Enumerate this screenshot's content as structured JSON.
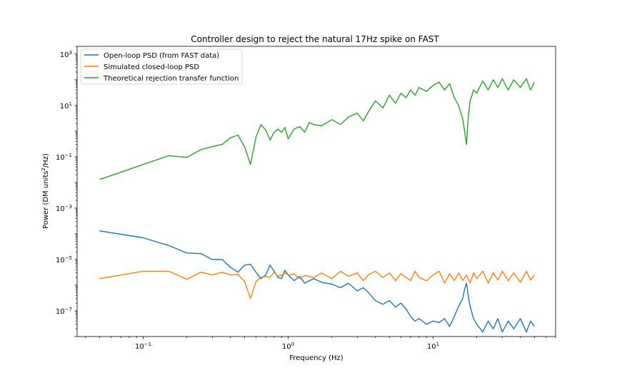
{
  "chart_data": {
    "type": "line",
    "title": "Controller design to reject the natural 17Hz spike on FAST",
    "xlabel": "Frequency (Hz)",
    "ylabel_prefix": "Power (DM units",
    "ylabel_sup": "2",
    "ylabel_suffix": "/Hz)",
    "xscale": "log",
    "yscale": "log",
    "xlim": [
      0.035,
      70
    ],
    "ylim": [
      1e-08,
      2000
    ],
    "x_ticks": [
      {
        "value": 0.1,
        "base": "10",
        "exp": "−1"
      },
      {
        "value": 1,
        "base": "10",
        "exp": "0"
      },
      {
        "value": 10,
        "base": "10",
        "exp": "1"
      }
    ],
    "y_ticks": [
      {
        "value": 1e-07,
        "base": "10",
        "exp": "−7"
      },
      {
        "value": 1e-05,
        "base": "10",
        "exp": "−5"
      },
      {
        "value": 0.001,
        "base": "10",
        "exp": "−3"
      },
      {
        "value": 0.1,
        "base": "10",
        "exp": "−1"
      },
      {
        "value": 10,
        "base": "10",
        "exp": "1"
      },
      {
        "value": 1000,
        "base": "10",
        "exp": "3"
      }
    ],
    "grid": false,
    "legend_position": "top-left",
    "series": [
      {
        "name": "Open-loop PSD (from FAST data)",
        "color": "#1f77b4",
        "points": [
          [
            0.05,
            0.00013
          ],
          [
            0.1,
            7e-05
          ],
          [
            0.15,
            3.5e-05
          ],
          [
            0.2,
            1.8e-05
          ],
          [
            0.25,
            1.7e-05
          ],
          [
            0.3,
            1e-05
          ],
          [
            0.35,
            1e-05
          ],
          [
            0.4,
            5e-06
          ],
          [
            0.45,
            3.2e-06
          ],
          [
            0.5,
            6e-06
          ],
          [
            0.55,
            6.5e-06
          ],
          [
            0.6,
            3.2e-06
          ],
          [
            0.65,
            1.8e-06
          ],
          [
            0.7,
            2.5e-06
          ],
          [
            0.75,
            6e-06
          ],
          [
            0.8,
            3.5e-06
          ],
          [
            0.85,
            2e-06
          ],
          [
            0.9,
            1.8e-06
          ],
          [
            0.95,
            3.8e-06
          ],
          [
            1.0,
            2.5e-06
          ],
          [
            1.1,
            1.5e-06
          ],
          [
            1.2,
            2.2e-06
          ],
          [
            1.3,
            1.2e-06
          ],
          [
            1.5,
            1.8e-06
          ],
          [
            1.7,
            1.3e-06
          ],
          [
            2.0,
            1.1e-06
          ],
          [
            2.3,
            8e-07
          ],
          [
            2.6,
            1.2e-06
          ],
          [
            3.0,
            6e-07
          ],
          [
            3.3,
            8e-07
          ],
          [
            3.6,
            5e-07
          ],
          [
            4.0,
            2.5e-07
          ],
          [
            4.5,
            1.8e-07
          ],
          [
            5.0,
            2.5e-07
          ],
          [
            5.5,
            1.4e-07
          ],
          [
            6.0,
            2e-07
          ],
          [
            6.5,
            1.2e-07
          ],
          [
            7.0,
            6e-08
          ],
          [
            7.5,
            4e-08
          ],
          [
            8.0,
            5e-08
          ],
          [
            9.0,
            3e-08
          ],
          [
            10.0,
            4e-08
          ],
          [
            11.0,
            3.5e-08
          ],
          [
            12.0,
            5e-08
          ],
          [
            13.0,
            2.5e-08
          ],
          [
            14.0,
            6e-08
          ],
          [
            15.0,
            1.5e-07
          ],
          [
            16.0,
            3e-07
          ],
          [
            16.5,
            7e-07
          ],
          [
            17.0,
            1.2e-06
          ],
          [
            17.3,
            6e-07
          ],
          [
            17.6,
            3e-07
          ],
          [
            18.0,
            1.5e-07
          ],
          [
            19.0,
            5e-08
          ],
          [
            20.0,
            3e-08
          ],
          [
            22.0,
            1.5e-08
          ],
          [
            24.0,
            4e-08
          ],
          [
            26.0,
            2e-08
          ],
          [
            28.0,
            5e-08
          ],
          [
            30.0,
            1.5e-08
          ],
          [
            33.0,
            4e-08
          ],
          [
            36.0,
            2e-08
          ],
          [
            40.0,
            5e-08
          ],
          [
            44.0,
            1.5e-08
          ],
          [
            47.0,
            4e-08
          ],
          [
            50.0,
            2.5e-08
          ]
        ]
      },
      {
        "name": "Simulated closed-loop PSD",
        "color": "#ff7f0e",
        "points": [
          [
            0.05,
            1.8e-06
          ],
          [
            0.1,
            3.5e-06
          ],
          [
            0.15,
            3.5e-06
          ],
          [
            0.2,
            1.7e-06
          ],
          [
            0.25,
            3.2e-06
          ],
          [
            0.3,
            2.5e-06
          ],
          [
            0.35,
            3.2e-06
          ],
          [
            0.4,
            2.5e-06
          ],
          [
            0.45,
            2.6e-06
          ],
          [
            0.5,
            1.4e-06
          ],
          [
            0.55,
            3e-07
          ],
          [
            0.6,
            1.4e-06
          ],
          [
            0.65,
            2e-06
          ],
          [
            0.7,
            2.2e-06
          ],
          [
            0.75,
            2e-06
          ],
          [
            0.8,
            3.2e-06
          ],
          [
            0.85,
            2.2e-06
          ],
          [
            0.9,
            2.5e-06
          ],
          [
            0.95,
            3e-06
          ],
          [
            1.0,
            2.5e-06
          ],
          [
            1.1,
            2.7e-06
          ],
          [
            1.2,
            1.8e-06
          ],
          [
            1.3,
            2.4e-06
          ],
          [
            1.5,
            2e-06
          ],
          [
            1.7,
            3e-06
          ],
          [
            2.0,
            1.8e-06
          ],
          [
            2.3,
            3.5e-06
          ],
          [
            2.6,
            2.2e-06
          ],
          [
            3.0,
            3e-06
          ],
          [
            3.3,
            1.5e-06
          ],
          [
            3.6,
            2.6e-06
          ],
          [
            4.0,
            3.5e-06
          ],
          [
            4.5,
            2e-06
          ],
          [
            5.0,
            3e-06
          ],
          [
            5.5,
            1.5e-06
          ],
          [
            6.0,
            2.8e-06
          ],
          [
            6.5,
            2e-06
          ],
          [
            7.0,
            1.5e-06
          ],
          [
            7.5,
            3.5e-06
          ],
          [
            8.0,
            2e-06
          ],
          [
            9.0,
            1.5e-06
          ],
          [
            10.0,
            2.5e-06
          ],
          [
            11.0,
            3.5e-06
          ],
          [
            12.0,
            1.2e-06
          ],
          [
            13.0,
            2.8e-06
          ],
          [
            14.0,
            1.5e-06
          ],
          [
            15.0,
            3e-06
          ],
          [
            16.0,
            1.5e-06
          ],
          [
            17.0,
            2.5e-06
          ],
          [
            18.0,
            1.2e-06
          ],
          [
            19.0,
            3e-06
          ],
          [
            20.0,
            1.8e-06
          ],
          [
            22.0,
            3.5e-06
          ],
          [
            24.0,
            1.2e-06
          ],
          [
            26.0,
            3e-06
          ],
          [
            28.0,
            1.6e-06
          ],
          [
            30.0,
            3.5e-06
          ],
          [
            33.0,
            1.5e-06
          ],
          [
            36.0,
            3e-06
          ],
          [
            40.0,
            1.3e-06
          ],
          [
            44.0,
            3.5e-06
          ],
          [
            47.0,
            1.6e-06
          ],
          [
            50.0,
            2.5e-06
          ]
        ]
      },
      {
        "name": "Theoretical rejection transfer function",
        "color": "#2ca02c",
        "points": [
          [
            0.05,
            0.013
          ],
          [
            0.1,
            0.05
          ],
          [
            0.15,
            0.11
          ],
          [
            0.2,
            0.095
          ],
          [
            0.25,
            0.19
          ],
          [
            0.3,
            0.25
          ],
          [
            0.35,
            0.3
          ],
          [
            0.4,
            0.55
          ],
          [
            0.45,
            0.7
          ],
          [
            0.5,
            0.25
          ],
          [
            0.55,
            0.05
          ],
          [
            0.6,
            0.6
          ],
          [
            0.65,
            1.8
          ],
          [
            0.7,
            1.1
          ],
          [
            0.75,
            0.45
          ],
          [
            0.8,
            0.9
          ],
          [
            0.85,
            1.2
          ],
          [
            0.9,
            0.9
          ],
          [
            0.95,
            1.4
          ],
          [
            1.0,
            0.5
          ],
          [
            1.1,
            1.2
          ],
          [
            1.2,
            1.5
          ],
          [
            1.3,
            0.9
          ],
          [
            1.4,
            2.2
          ],
          [
            1.5,
            1.8
          ],
          [
            1.7,
            1.6
          ],
          [
            2.0,
            2.8
          ],
          [
            2.3,
            1.8
          ],
          [
            2.6,
            3.5
          ],
          [
            3.0,
            5
          ],
          [
            3.3,
            2.5
          ],
          [
            3.6,
            6
          ],
          [
            4.0,
            15
          ],
          [
            4.5,
            8
          ],
          [
            5.0,
            25
          ],
          [
            5.5,
            12
          ],
          [
            6.0,
            30
          ],
          [
            6.5,
            20
          ],
          [
            7.0,
            40
          ],
          [
            7.5,
            25
          ],
          [
            8.0,
            50
          ],
          [
            9.0,
            35
          ],
          [
            10.0,
            60
          ],
          [
            11.0,
            80
          ],
          [
            12.0,
            40
          ],
          [
            13.0,
            70
          ],
          [
            14.0,
            20
          ],
          [
            15.0,
            10
          ],
          [
            16.0,
            3
          ],
          [
            16.5,
            1
          ],
          [
            17.0,
            0.3
          ],
          [
            17.3,
            1.5
          ],
          [
            17.6,
            5
          ],
          [
            18.0,
            15
          ],
          [
            19.0,
            40
          ],
          [
            20.0,
            30
          ],
          [
            22.0,
            90
          ],
          [
            24.0,
            40
          ],
          [
            26.0,
            100
          ],
          [
            28.0,
            50
          ],
          [
            30.0,
            110
          ],
          [
            33.0,
            40
          ],
          [
            36.0,
            100
          ],
          [
            40.0,
            50
          ],
          [
            44.0,
            110
          ],
          [
            47.0,
            40
          ],
          [
            50.0,
            80
          ]
        ]
      }
    ]
  }
}
